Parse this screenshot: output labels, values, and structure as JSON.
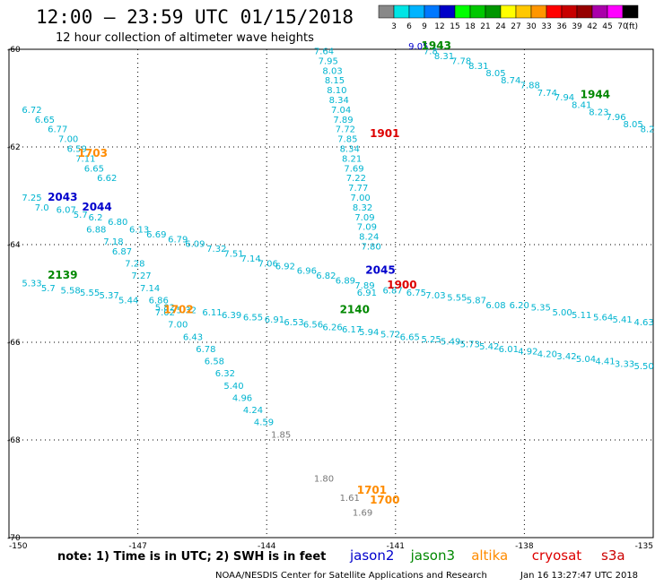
{
  "header": {
    "title": "12:00 – 23:59 UTC 01/15/2018",
    "subtitle": "12 hour collection of altimeter wave heights"
  },
  "colorbar": {
    "labels": [
      "3",
      "6",
      "9",
      "12",
      "15",
      "18",
      "21",
      "24",
      "27",
      "30",
      "33",
      "36",
      "39",
      "42",
      "45",
      "70"
    ],
    "unit": "(ft)",
    "colors": [
      "#888888",
      "#00e5e5",
      "#00b4ff",
      "#0078ff",
      "#0000c8",
      "#00ff00",
      "#00c800",
      "#009600",
      "#ffff00",
      "#ffc800",
      "#ff9600",
      "#ff0000",
      "#c80000",
      "#960000",
      "#aa00aa",
      "#ff00ff",
      "#000000"
    ]
  },
  "map": {
    "lat_labels": [
      "-60",
      "-62",
      "-64",
      "-66",
      "-68",
      "-70"
    ],
    "lon_labels": [
      "-150",
      "-147",
      "-144",
      "-141",
      "-138",
      "-135"
    ],
    "lat_ticks": [
      -60,
      -62,
      -64,
      -66,
      -68,
      -70
    ],
    "lon_ticks": [
      -147,
      -144,
      -141,
      -138
    ]
  },
  "series_colors": {
    "cyan": "#00b4d0",
    "gray": "#777777",
    "jason2": "#0000cc",
    "jason3": "#008800",
    "altika": "#ff8c00",
    "cryosat": "#dd0000",
    "s3a": "#cc0000"
  },
  "chart_data": {
    "type": "scatter",
    "xlim": [
      -150,
      -135
    ],
    "ylim": [
      -70,
      -60
    ],
    "time_labels": [
      {
        "text": "1943",
        "lon": -140.4,
        "lat": -60.0,
        "color": "jason3"
      },
      {
        "text": "1944",
        "lon": -136.7,
        "lat": -61.0,
        "color": "jason3"
      },
      {
        "text": "1901",
        "lon": -141.6,
        "lat": -61.8,
        "color": "cryosat"
      },
      {
        "text": "1703",
        "lon": -148.4,
        "lat": -62.2,
        "color": "altika"
      },
      {
        "text": "2043",
        "lon": -149.1,
        "lat": -63.1,
        "color": "jason2"
      },
      {
        "text": "2044",
        "lon": -148.3,
        "lat": -63.3,
        "color": "jason2"
      },
      {
        "text": "2045",
        "lon": -141.7,
        "lat": -64.6,
        "color": "jason2"
      },
      {
        "text": "1900",
        "lon": -141.2,
        "lat": -64.9,
        "color": "cryosat"
      },
      {
        "text": "2139",
        "lon": -149.1,
        "lat": -64.7,
        "color": "jason3"
      },
      {
        "text": "2140",
        "lon": -142.3,
        "lat": -65.4,
        "color": "jason3"
      },
      {
        "text": "1702",
        "lon": -146.4,
        "lat": -65.4,
        "color": "altika"
      },
      {
        "text": "1701",
        "lon": -141.9,
        "lat": -69.1,
        "color": "altika"
      },
      {
        "text": "1700",
        "lon": -141.6,
        "lat": -69.3,
        "color": "altika"
      }
    ],
    "values": [
      {
        "t": "9.05",
        "lon": -140.7,
        "lat": -60.0,
        "c": "jason2"
      },
      {
        "t": "7.64",
        "lon": -142.9,
        "lat": -60.1,
        "c": "cyan"
      },
      {
        "t": "7.95",
        "lon": -142.8,
        "lat": -60.3,
        "c": "cyan"
      },
      {
        "t": "8.03",
        "lon": -142.7,
        "lat": -60.5,
        "c": "cyan"
      },
      {
        "t": "8.15",
        "lon": -142.65,
        "lat": -60.7,
        "c": "cyan"
      },
      {
        "t": "8.10",
        "lon": -142.6,
        "lat": -60.9,
        "c": "cyan"
      },
      {
        "t": "8.34",
        "lon": -142.55,
        "lat": -61.1,
        "c": "cyan"
      },
      {
        "t": "7.04",
        "lon": -142.5,
        "lat": -61.3,
        "c": "cyan"
      },
      {
        "t": "7.89",
        "lon": -142.45,
        "lat": -61.5,
        "c": "cyan"
      },
      {
        "t": "7.72",
        "lon": -142.4,
        "lat": -61.7,
        "c": "cyan"
      },
      {
        "t": "7.85",
        "lon": -142.35,
        "lat": -61.9,
        "c": "cyan"
      },
      {
        "t": "8.34",
        "lon": -142.3,
        "lat": -62.1,
        "c": "cyan"
      },
      {
        "t": "8.21",
        "lon": -142.25,
        "lat": -62.3,
        "c": "cyan"
      },
      {
        "t": "7.69",
        "lon": -142.2,
        "lat": -62.5,
        "c": "cyan"
      },
      {
        "t": "7.22",
        "lon": -142.15,
        "lat": -62.7,
        "c": "cyan"
      },
      {
        "t": "7.77",
        "lon": -142.1,
        "lat": -62.9,
        "c": "cyan"
      },
      {
        "t": "7.00",
        "lon": -142.05,
        "lat": -63.1,
        "c": "cyan"
      },
      {
        "t": "8.32",
        "lon": -142.0,
        "lat": -63.3,
        "c": "cyan"
      },
      {
        "t": "7.09",
        "lon": -141.95,
        "lat": -63.5,
        "c": "cyan"
      },
      {
        "t": "7.09",
        "lon": -141.9,
        "lat": -63.7,
        "c": "cyan"
      },
      {
        "t": "8.24",
        "lon": -141.85,
        "lat": -63.9,
        "c": "cyan"
      },
      {
        "t": "7.80",
        "lon": -141.8,
        "lat": -64.1,
        "c": "cyan"
      },
      {
        "t": "7.8",
        "lon": -140.35,
        "lat": -60.1,
        "c": "cyan"
      },
      {
        "t": "8.31",
        "lon": -140.1,
        "lat": -60.2,
        "c": "cyan"
      },
      {
        "t": "7.78",
        "lon": -139.7,
        "lat": -60.3,
        "c": "cyan"
      },
      {
        "t": "8.31",
        "lon": -139.3,
        "lat": -60.4,
        "c": "cyan"
      },
      {
        "t": "8.05",
        "lon": -138.9,
        "lat": -60.55,
        "c": "cyan"
      },
      {
        "t": "8.74",
        "lon": -138.55,
        "lat": -60.7,
        "c": "cyan"
      },
      {
        "t": "7.88",
        "lon": -138.1,
        "lat": -60.8,
        "c": "cyan"
      },
      {
        "t": "7.74",
        "lon": -137.7,
        "lat": -60.95,
        "c": "cyan"
      },
      {
        "t": "7.94",
        "lon": -137.3,
        "lat": -61.05,
        "c": "cyan"
      },
      {
        "t": "8.41",
        "lon": -136.9,
        "lat": -61.2,
        "c": "cyan"
      },
      {
        "t": "8.23",
        "lon": -136.5,
        "lat": -61.35,
        "c": "cyan"
      },
      {
        "t": "7.96",
        "lon": -136.1,
        "lat": -61.45,
        "c": "cyan"
      },
      {
        "t": "8.05",
        "lon": -135.7,
        "lat": -61.6,
        "c": "cyan"
      },
      {
        "t": "8.2",
        "lon": -135.3,
        "lat": -61.7,
        "c": "cyan"
      },
      {
        "t": "6.72",
        "lon": -149.7,
        "lat": -61.3,
        "c": "cyan"
      },
      {
        "t": "6.65",
        "lon": -149.4,
        "lat": -61.5,
        "c": "cyan"
      },
      {
        "t": "6.77",
        "lon": -149.1,
        "lat": -61.7,
        "c": "cyan"
      },
      {
        "t": "7.00",
        "lon": -148.85,
        "lat": -61.9,
        "c": "cyan"
      },
      {
        "t": "6.59",
        "lon": -148.65,
        "lat": -62.1,
        "c": "cyan"
      },
      {
        "t": "7.11",
        "lon": -148.45,
        "lat": -62.3,
        "c": "cyan"
      },
      {
        "t": "6.65",
        "lon": -148.25,
        "lat": -62.5,
        "c": "cyan"
      },
      {
        "t": "6.62",
        "lon": -147.95,
        "lat": -62.7,
        "c": "cyan"
      },
      {
        "t": "7.25",
        "lon": -149.7,
        "lat": -63.1,
        "c": "cyan"
      },
      {
        "t": "7.0",
        "lon": -149.4,
        "lat": -63.3,
        "c": "cyan"
      },
      {
        "t": "6.07",
        "lon": -148.9,
        "lat": -63.35,
        "c": "cyan"
      },
      {
        "t": "5.7",
        "lon": -148.5,
        "lat": -63.45,
        "c": "cyan"
      },
      {
        "t": "6.2",
        "lon": -148.15,
        "lat": -63.5,
        "c": "cyan"
      },
      {
        "t": "6.80",
        "lon": -147.7,
        "lat": -63.6,
        "c": "cyan"
      },
      {
        "t": "6.13",
        "lon": -147.2,
        "lat": -63.75,
        "c": "cyan"
      },
      {
        "t": "6.69",
        "lon": -146.8,
        "lat": -63.85,
        "c": "cyan"
      },
      {
        "t": "6.79",
        "lon": -146.3,
        "lat": -63.95,
        "c": "cyan"
      },
      {
        "t": "6.09",
        "lon": -145.9,
        "lat": -64.05,
        "c": "cyan"
      },
      {
        "t": "7.32",
        "lon": -145.4,
        "lat": -64.15,
        "c": "cyan"
      },
      {
        "t": "7.51",
        "lon": -145.0,
        "lat": -64.25,
        "c": "cyan"
      },
      {
        "t": "7.14",
        "lon": -144.6,
        "lat": -64.35,
        "c": "cyan"
      },
      {
        "t": "7.06",
        "lon": -144.2,
        "lat": -64.45,
        "c": "cyan"
      },
      {
        "t": "6.92",
        "lon": -143.8,
        "lat": -64.5,
        "c": "cyan"
      },
      {
        "t": "6.96",
        "lon": -143.3,
        "lat": -64.6,
        "c": "cyan"
      },
      {
        "t": "6.82",
        "lon": -142.85,
        "lat": -64.7,
        "c": "cyan"
      },
      {
        "t": "6.89",
        "lon": -142.4,
        "lat": -64.8,
        "c": "cyan"
      },
      {
        "t": "7.89",
        "lon": -141.95,
        "lat": -64.9,
        "c": "cyan"
      },
      {
        "t": "6.91",
        "lon": -141.9,
        "lat": -65.05,
        "c": "cyan"
      },
      {
        "t": "6.87",
        "lon": -141.3,
        "lat": -65.0,
        "c": "cyan"
      },
      {
        "t": "6.75",
        "lon": -140.75,
        "lat": -65.05,
        "c": "cyan"
      },
      {
        "t": "7.03",
        "lon": -140.3,
        "lat": -65.1,
        "c": "cyan"
      },
      {
        "t": "5.55",
        "lon": -139.8,
        "lat": -65.15,
        "c": "cyan"
      },
      {
        "t": "5.87",
        "lon": -139.35,
        "lat": -65.2,
        "c": "cyan"
      },
      {
        "t": "6.08",
        "lon": -138.9,
        "lat": -65.3,
        "c": "cyan"
      },
      {
        "t": "6.20",
        "lon": -138.35,
        "lat": -65.3,
        "c": "cyan"
      },
      {
        "t": "5.35",
        "lon": -137.85,
        "lat": -65.35,
        "c": "cyan"
      },
      {
        "t": "5.00",
        "lon": -137.35,
        "lat": -65.45,
        "c": "cyan"
      },
      {
        "t": "5.11",
        "lon": -136.9,
        "lat": -65.5,
        "c": "cyan"
      },
      {
        "t": "5.64",
        "lon": -136.4,
        "lat": -65.55,
        "c": "cyan"
      },
      {
        "t": "5.41",
        "lon": -135.95,
        "lat": -65.6,
        "c": "cyan"
      },
      {
        "t": "4.63",
        "lon": -135.45,
        "lat": -65.65,
        "c": "cyan"
      },
      {
        "t": "6.88",
        "lon": -148.2,
        "lat": -63.75,
        "c": "cyan"
      },
      {
        "t": "7.18",
        "lon": -147.8,
        "lat": -64.0,
        "c": "cyan"
      },
      {
        "t": "6.87",
        "lon": -147.6,
        "lat": -64.2,
        "c": "cyan"
      },
      {
        "t": "7.28",
        "lon": -147.3,
        "lat": -64.45,
        "c": "cyan"
      },
      {
        "t": "7.27",
        "lon": -147.15,
        "lat": -64.7,
        "c": "cyan"
      },
      {
        "t": "7.14",
        "lon": -146.95,
        "lat": -64.95,
        "c": "cyan"
      },
      {
        "t": "6.86",
        "lon": -146.75,
        "lat": -65.2,
        "c": "cyan"
      },
      {
        "t": "7.02",
        "lon": -146.6,
        "lat": -65.45,
        "c": "cyan"
      },
      {
        "t": "7.00",
        "lon": -146.3,
        "lat": -65.7,
        "c": "cyan"
      },
      {
        "t": "6.43",
        "lon": -145.95,
        "lat": -65.95,
        "c": "cyan"
      },
      {
        "t": "6.78",
        "lon": -145.65,
        "lat": -66.2,
        "c": "cyan"
      },
      {
        "t": "6.58",
        "lon": -145.45,
        "lat": -66.45,
        "c": "cyan"
      },
      {
        "t": "6.32",
        "lon": -145.2,
        "lat": -66.7,
        "c": "cyan"
      },
      {
        "t": "5.40",
        "lon": -145.0,
        "lat": -66.95,
        "c": "cyan"
      },
      {
        "t": "4.96",
        "lon": -144.8,
        "lat": -67.2,
        "c": "cyan"
      },
      {
        "t": "4.24",
        "lon": -144.55,
        "lat": -67.45,
        "c": "cyan"
      },
      {
        "t": "4.59",
        "lon": -144.3,
        "lat": -67.7,
        "c": "cyan"
      },
      {
        "t": "1.85",
        "lon": -143.9,
        "lat": -67.95,
        "c": "gray"
      },
      {
        "t": "1.80",
        "lon": -142.9,
        "lat": -68.85,
        "c": "gray"
      },
      {
        "t": "1.61",
        "lon": -142.3,
        "lat": -69.25,
        "c": "gray"
      },
      {
        "t": "1.69",
        "lon": -142.0,
        "lat": -69.55,
        "c": "gray"
      },
      {
        "t": "5.33",
        "lon": -149.7,
        "lat": -64.85,
        "c": "cyan"
      },
      {
        "t": "5.7",
        "lon": -149.25,
        "lat": -64.95,
        "c": "cyan"
      },
      {
        "t": "5.58",
        "lon": -148.8,
        "lat": -65.0,
        "c": "cyan"
      },
      {
        "t": "5.55",
        "lon": -148.35,
        "lat": -65.05,
        "c": "cyan"
      },
      {
        "t": "5.37",
        "lon": -147.9,
        "lat": -65.1,
        "c": "cyan"
      },
      {
        "t": "5.44",
        "lon": -147.45,
        "lat": -65.2,
        "c": "cyan"
      },
      {
        "t": "5.82",
        "lon": -146.6,
        "lat": -65.35,
        "c": "cyan"
      },
      {
        "t": "5.32",
        "lon": -146.1,
        "lat": -65.4,
        "c": "cyan"
      },
      {
        "t": "6.11",
        "lon": -145.5,
        "lat": -65.45,
        "c": "cyan"
      },
      {
        "t": "6.39",
        "lon": -145.05,
        "lat": -65.5,
        "c": "cyan"
      },
      {
        "t": "6.55",
        "lon": -144.55,
        "lat": -65.55,
        "c": "cyan"
      },
      {
        "t": "6.91",
        "lon": -144.05,
        "lat": -65.6,
        "c": "cyan"
      },
      {
        "t": "6.53",
        "lon": -143.6,
        "lat": -65.65,
        "c": "cyan"
      },
      {
        "t": "6.56",
        "lon": -143.15,
        "lat": -65.7,
        "c": "cyan"
      },
      {
        "t": "6.26",
        "lon": -142.7,
        "lat": -65.75,
        "c": "cyan"
      },
      {
        "t": "6.17",
        "lon": -142.25,
        "lat": -65.8,
        "c": "cyan"
      },
      {
        "t": "5.94",
        "lon": -141.85,
        "lat": -65.85,
        "c": "cyan"
      },
      {
        "t": "5.72",
        "lon": -141.35,
        "lat": -65.9,
        "c": "cyan"
      },
      {
        "t": "6.65",
        "lon": -140.9,
        "lat": -65.95,
        "c": "cyan"
      },
      {
        "t": "5.25",
        "lon": -140.4,
        "lat": -66.0,
        "c": "cyan"
      },
      {
        "t": "5.49",
        "lon": -139.95,
        "lat": -66.05,
        "c": "cyan"
      },
      {
        "t": "5.73",
        "lon": -139.5,
        "lat": -66.1,
        "c": "cyan"
      },
      {
        "t": "5.42",
        "lon": -139.05,
        "lat": -66.15,
        "c": "cyan"
      },
      {
        "t": "6.01",
        "lon": -138.6,
        "lat": -66.2,
        "c": "cyan"
      },
      {
        "t": "4.92",
        "lon": -138.15,
        "lat": -66.25,
        "c": "cyan"
      },
      {
        "t": "4.20",
        "lon": -137.7,
        "lat": -66.3,
        "c": "cyan"
      },
      {
        "t": "3.42",
        "lon": -137.25,
        "lat": -66.35,
        "c": "cyan"
      },
      {
        "t": "5.04",
        "lon": -136.8,
        "lat": -66.4,
        "c": "cyan"
      },
      {
        "t": "4.41",
        "lon": -136.35,
        "lat": -66.45,
        "c": "cyan"
      },
      {
        "t": "3.33",
        "lon": -135.9,
        "lat": -66.5,
        "c": "cyan"
      },
      {
        "t": "5.50",
        "lon": -135.45,
        "lat": -66.55,
        "c": "cyan"
      }
    ]
  },
  "footer": {
    "note": "note: 1) Time is in UTC; 2) SWH is in feet",
    "credit": "NOAA/NESDIS Center for Satellite Applications and Research",
    "timestamp": "Jan 16 13:27:47 UTC 2018",
    "legend": [
      {
        "label": "jason2",
        "color": "jason2"
      },
      {
        "label": "jason3",
        "color": "jason3"
      },
      {
        "label": "altika",
        "color": "altika"
      },
      {
        "label": "cryosat",
        "color": "cryosat"
      },
      {
        "label": "s3a",
        "color": "s3a"
      }
    ]
  }
}
